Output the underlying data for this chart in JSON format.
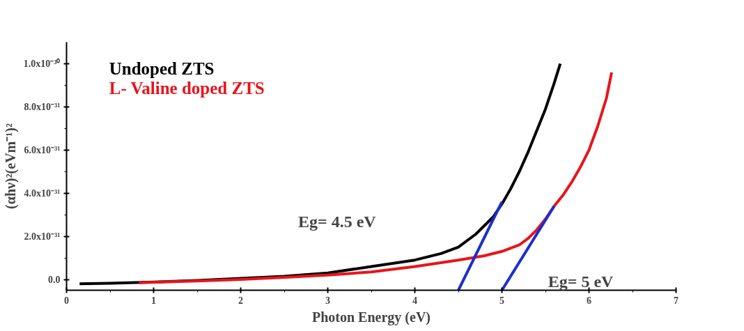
{
  "chart_data": {
    "type": "line",
    "xlabel": "Photon Energy (eV)",
    "ylabel": "(αhν)²(eVm⁻¹)²",
    "xlim": [
      0,
      7
    ],
    "ylim": [
      -5e-32,
      1.1e-30
    ],
    "xticks": [
      0,
      1,
      2,
      3,
      4,
      5,
      6,
      7
    ],
    "yticks": [
      {
        "value": 0,
        "label": "0.0"
      },
      {
        "value": 2e-31,
        "label": "2.0x10⁻³¹"
      },
      {
        "value": 4e-31,
        "label": "4.0x10⁻³¹"
      },
      {
        "value": 6e-31,
        "label": "6.0x10⁻³¹"
      },
      {
        "value": 8e-31,
        "label": "8.0x10⁻³¹"
      },
      {
        "value": 1e-30,
        "label": "1.0x10⁻³⁰"
      }
    ],
    "grid": false,
    "legend": "top left",
    "marker": "none",
    "line_style": "solid",
    "series": [
      {
        "name": "Undoped ZTS",
        "color": "#000000",
        "x": [
          0.15,
          0.5,
          1,
          1.5,
          2,
          2.5,
          3,
          3.5,
          4,
          4.3,
          4.5,
          4.7,
          4.9,
          5.0,
          5.1,
          5.2,
          5.3,
          5.4,
          5.5,
          5.6,
          5.67
        ],
        "values": [
          -2e-32,
          -1.8e-32,
          -1.2e-32,
          -5e-33,
          5e-33,
          1.5e-32,
          3e-32,
          6e-32,
          9e-32,
          1.2e-31,
          1.5e-31,
          2.1e-31,
          2.9e-31,
          3.5e-31,
          4.2e-31,
          5e-31,
          5.9e-31,
          6.9e-31,
          7.9e-31,
          9.1e-31,
          1e-30
        ]
      },
      {
        "name": "L- Valine doped ZTS",
        "color": "#e8141b",
        "x": [
          0.83,
          1.5,
          2,
          2.5,
          3,
          3.5,
          4,
          4.5,
          4.8,
          5.0,
          5.2,
          5.3,
          5.4,
          5.5,
          5.6,
          5.7,
          5.8,
          5.9,
          6.0,
          6.1,
          6.2,
          6.26
        ],
        "values": [
          -1.5e-32,
          -7e-33,
          0,
          1e-32,
          2e-32,
          3.5e-32,
          6e-32,
          9e-32,
          1.1e-31,
          1.3e-31,
          1.6e-31,
          1.9e-31,
          2.3e-31,
          2.8e-31,
          3.4e-31,
          3.9e-31,
          4.5e-31,
          5.2e-31,
          6e-31,
          7.1e-31,
          8.4e-31,
          9.6e-31
        ]
      },
      {
        "color": "#1a2ecc",
        "x": [
          4.5,
          5.0
        ],
        "values": [
          -5e-32,
          3.6e-31
        ]
      },
      {
        "color": "#1a2ecc",
        "x": [
          5.0,
          5.6
        ],
        "values": [
          -5e-32,
          3.4e-31
        ]
      }
    ],
    "annotations": [
      "Eg= 4.5 eV",
      "Eg= 5 eV"
    ]
  }
}
